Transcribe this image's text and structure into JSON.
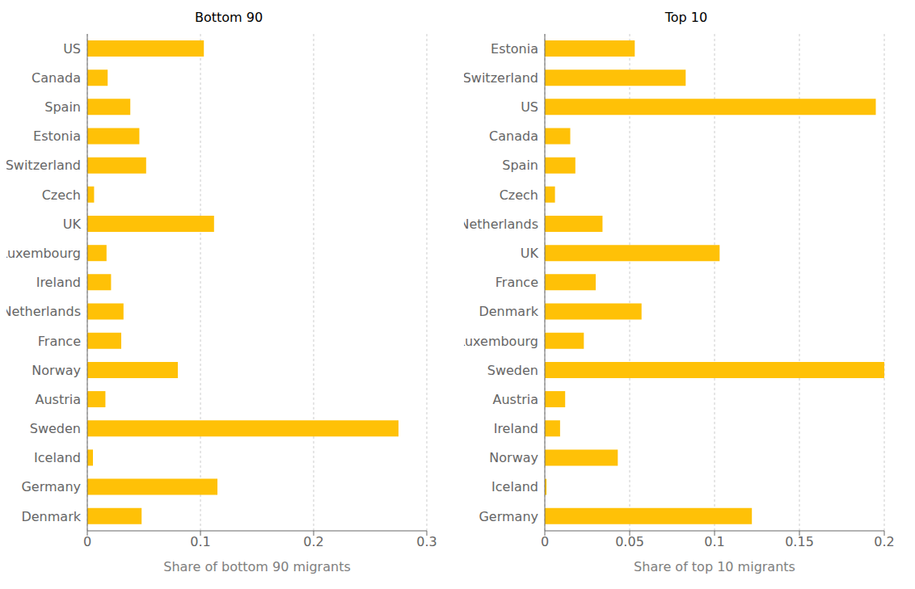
{
  "chart_data": [
    {
      "type": "bar",
      "orientation": "horizontal",
      "title": "Bottom 90",
      "xlabel": "Share of bottom 90 migrants",
      "categories": [
        "US",
        "Canada",
        "Spain",
        "Estonia",
        "Switzerland",
        "Czech",
        "UK",
        "Luxembourg",
        "Ireland",
        "Netherlands",
        "France",
        "Norway",
        "Austria",
        "Sweden",
        "Iceland",
        "Germany",
        "Denmark"
      ],
      "values": [
        0.103,
        0.018,
        0.038,
        0.046,
        0.052,
        0.006,
        0.112,
        0.017,
        0.021,
        0.032,
        0.03,
        0.08,
        0.016,
        0.275,
        0.005,
        0.115,
        0.048
      ],
      "color": "#FFC107",
      "xlim": [
        0,
        0.3
      ],
      "xticks": [
        0,
        0.1,
        0.2,
        0.3
      ],
      "grid": true
    },
    {
      "type": "bar",
      "orientation": "horizontal",
      "title": "Top 10",
      "xlabel": "Share of top 10 migrants",
      "categories": [
        "Estonia",
        "Switzerland",
        "US",
        "Canada",
        "Spain",
        "Czech",
        "Netherlands",
        "UK",
        "France",
        "Denmark",
        "Luxembourg",
        "Sweden",
        "Austria",
        "Ireland",
        "Norway",
        "Iceland",
        "Germany"
      ],
      "values": [
        0.053,
        0.083,
        0.195,
        0.015,
        0.018,
        0.006,
        0.034,
        0.103,
        0.03,
        0.057,
        0.023,
        0.2,
        0.012,
        0.009,
        0.043,
        0.001,
        0.122
      ],
      "color": "#FFC107",
      "xlim": [
        0,
        0.2
      ],
      "xticks": [
        0,
        0.05,
        0.1,
        0.15,
        0.2
      ],
      "grid": true
    }
  ]
}
